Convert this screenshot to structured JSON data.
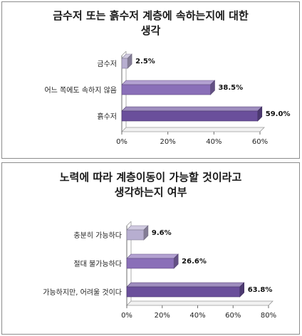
{
  "chart_data": [
    {
      "type": "bar",
      "orientation": "horizontal",
      "title_lines": [
        "금수저 또는 흙수저 계층에 속하는지에 대한",
        "생각"
      ],
      "categories": [
        "금수저",
        "어느 쪽에도 속하지 않음",
        "흙수저"
      ],
      "values": [
        2.5,
        38.5,
        59.0
      ],
      "value_labels": [
        "2.5%",
        "38.5%",
        "59.0%"
      ],
      "xlim": [
        0,
        60
      ],
      "ticks": [
        0,
        20,
        40,
        60
      ],
      "tick_labels": [
        "0%",
        "20%",
        "40%",
        "60%"
      ],
      "bar_colors": [
        "#b7aed0",
        "#8a6fb8",
        "#6a4f9b"
      ],
      "grid": false,
      "legend": "none",
      "style": "3d"
    },
    {
      "type": "bar",
      "orientation": "horizontal",
      "title_lines": [
        "노력에 따라 계층이동이 가능할 것이라고",
        "생각하는지 여부"
      ],
      "categories": [
        "충분히 가능하다",
        "절대 불가능하다",
        "가능하지만, 어려울 것이다"
      ],
      "values": [
        9.6,
        26.6,
        63.8
      ],
      "value_labels": [
        "9.6%",
        "26.6%",
        "63.8%"
      ],
      "xlim": [
        0,
        80
      ],
      "ticks": [
        0,
        20,
        40,
        60,
        80
      ],
      "tick_labels": [
        "0%",
        "20%",
        "40%",
        "60%",
        "80%"
      ],
      "bar_colors": [
        "#b7aed0",
        "#8a6fb8",
        "#6a4f9b"
      ],
      "grid": false,
      "legend": "none",
      "style": "3d"
    }
  ]
}
